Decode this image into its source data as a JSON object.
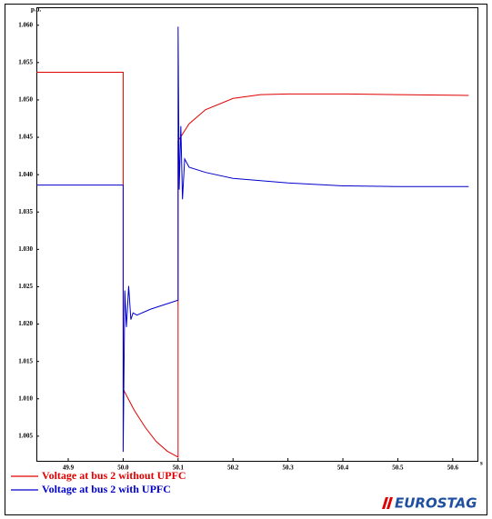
{
  "chart_data": {
    "type": "line",
    "y_label": "p.u.",
    "x_label": "s",
    "logo": "EUROSTAG",
    "xlim": [
      49.842,
      50.645
    ],
    "ylim": [
      1.0017,
      1.0624
    ],
    "xticks": [
      49.9,
      {
        "value": 50,
        "label": "50.0"
      },
      50.1,
      50.2,
      50.3,
      50.4,
      50.5,
      50.6
    ],
    "yticks": [
      {
        "value": 1.005,
        "label": "1.005"
      },
      {
        "value": 1.01,
        "label": "1.010"
      },
      {
        "value": 1.015,
        "label": "1.015"
      },
      {
        "value": 1.02,
        "label": "1.020"
      },
      {
        "value": 1.025,
        "label": "1.025"
      },
      {
        "value": 1.03,
        "label": "1.030"
      },
      {
        "value": 1.035,
        "label": "1.035"
      },
      {
        "value": 1.04,
        "label": "1.040"
      },
      {
        "value": 1.045,
        "label": "1.045"
      },
      {
        "value": 1.05,
        "label": "1.050"
      },
      {
        "value": 1.055,
        "label": "1.055"
      },
      {
        "value": 1.06,
        "label": "1.060"
      }
    ],
    "series": [
      {
        "name": "Voltage at bus 2 without UPFC",
        "color": "#e00000",
        "x": [
          49.842,
          50.0,
          50.0,
          50.02,
          50.04,
          50.06,
          50.08,
          50.1,
          50.1,
          50.12,
          50.15,
          50.2,
          50.25,
          50.3,
          50.4,
          50.5,
          50.629
        ],
        "values": [
          1.0537,
          1.0537,
          1.0113,
          1.0085,
          1.0062,
          1.0043,
          1.003,
          1.0022,
          1.0445,
          1.0468,
          1.0487,
          1.0502,
          1.0507,
          1.0508,
          1.0508,
          1.0507,
          1.0506
        ]
      },
      {
        "name": "Voltage at bus 2 with UPFC",
        "color": "#0000cc",
        "x": [
          49.842,
          50.0,
          50.0,
          50.003,
          50.006,
          50.01,
          50.014,
          50.018,
          50.025,
          50.05,
          50.1,
          50.1,
          50.102,
          50.105,
          50.108,
          50.112,
          50.12,
          50.15,
          50.2,
          50.3,
          50.4,
          50.5,
          50.629
        ],
        "values": [
          1.0386,
          1.0386,
          1.0029,
          1.0245,
          1.0196,
          1.0251,
          1.0206,
          1.0215,
          1.0212,
          1.022,
          1.0232,
          1.0598,
          1.038,
          1.0465,
          1.0367,
          1.0421,
          1.041,
          1.0403,
          1.0395,
          1.0389,
          1.0385,
          1.0384,
          1.0384
        ]
      }
    ]
  }
}
